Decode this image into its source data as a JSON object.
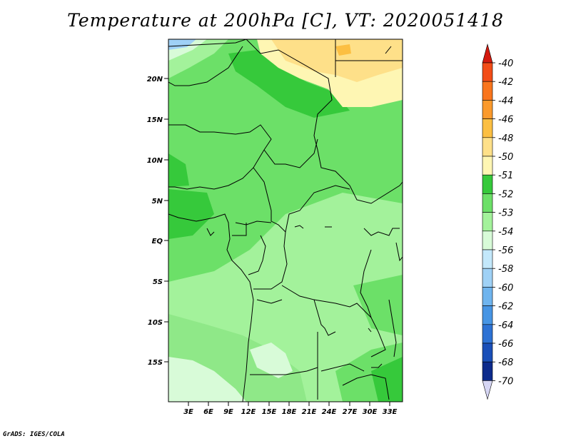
{
  "title": "Temperature at 200hPa [C], VT: 2020051418",
  "credit": "GrADS: IGES/COLA",
  "map": {
    "variable": "Temperature",
    "level": "200hPa",
    "units": "C",
    "valid_time": "2020051418",
    "y_ticks": [
      "20N",
      "15N",
      "10N",
      "5N",
      "EQ",
      "5S",
      "10S",
      "15S"
    ],
    "x_ticks": [
      "3E",
      "6E",
      "9E",
      "12E",
      "15E",
      "18E",
      "21E",
      "24E",
      "27E",
      "30E",
      "33E"
    ]
  },
  "legend": {
    "levels": [
      {
        "label": "-40",
        "color": "#e8251c"
      },
      {
        "label": "-42",
        "color": "#f24c17"
      },
      {
        "label": "-44",
        "color": "#f9751d"
      },
      {
        "label": "-46",
        "color": "#fb9a2c"
      },
      {
        "label": "-48",
        "color": "#fcbf42"
      },
      {
        "label": "-50",
        "color": "#fee089"
      },
      {
        "label": "-51",
        "color": "#fef6b3"
      },
      {
        "label": "-52",
        "color": "#36c93b"
      },
      {
        "label": "-53",
        "color": "#6ce068"
      },
      {
        "label": "-54",
        "color": "#a3f29b"
      },
      {
        "label": "-56",
        "color": "#d8fbd8"
      },
      {
        "label": "-58",
        "color": "#c3e8fb"
      },
      {
        "label": "-60",
        "color": "#9fd1f6"
      },
      {
        "label": "-62",
        "color": "#6fb4ee"
      },
      {
        "label": "-64",
        "color": "#4795e4"
      },
      {
        "label": "-66",
        "color": "#2d72d4"
      },
      {
        "label": "-68",
        "color": "#1a4fb8"
      },
      {
        "label": "-70",
        "color": "#0d2b8c"
      }
    ],
    "top_arrow_color": "#d3190e",
    "bottom_arrow_color": "#d6d6f4"
  }
}
